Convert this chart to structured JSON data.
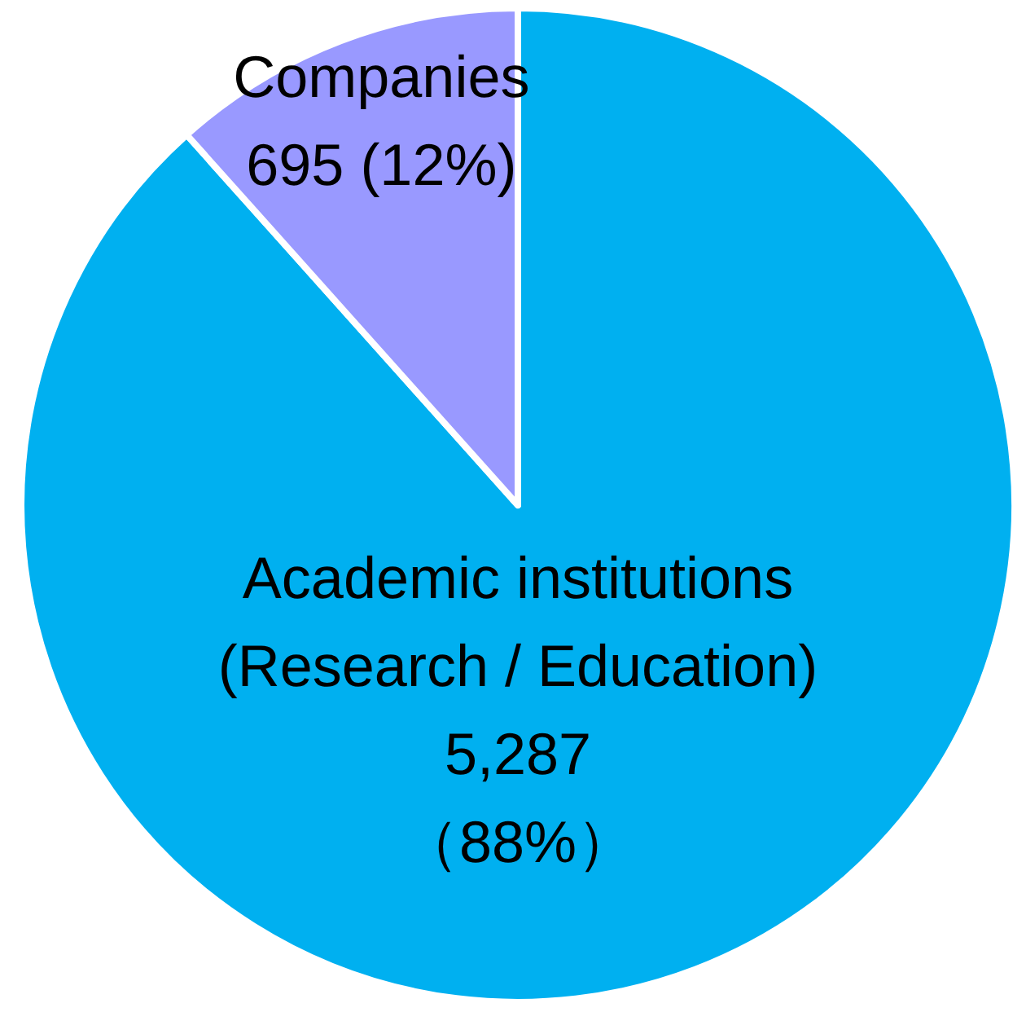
{
  "chart_data": {
    "type": "pie",
    "categories": [
      "Academic institutions\n(Research / Education)",
      "Companies"
    ],
    "values": [
      5287,
      695
    ],
    "colors": [
      "#00b0f0",
      "#9999ff"
    ],
    "value_labels": [
      "5,287\n（88%）",
      "695 (12%)"
    ]
  }
}
